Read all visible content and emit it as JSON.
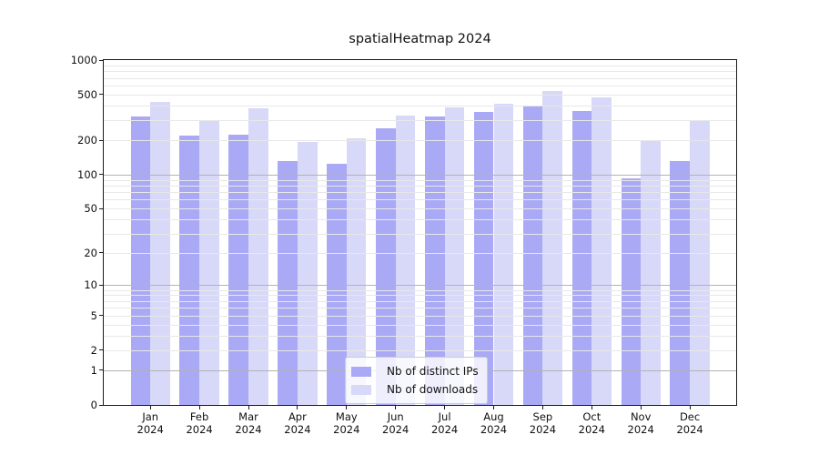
{
  "chart_data": {
    "type": "bar",
    "title": "spatialHeatmap 2024",
    "x": {
      "months": [
        "Jan",
        "Feb",
        "Mar",
        "Apr",
        "May",
        "Jun",
        "Jul",
        "Aug",
        "Sep",
        "Oct",
        "Nov",
        "Dec"
      ],
      "year": "2024"
    },
    "series": [
      {
        "name": "Nb of distinct IPs",
        "color": "#a9a9f5",
        "values": [
          320,
          219,
          222,
          131,
          124,
          254,
          320,
          352,
          400,
          361,
          92,
          131
        ]
      },
      {
        "name": "Nb of downloads",
        "color": "#d8d8f9",
        "values": [
          430,
          295,
          379,
          193,
          208,
          329,
          388,
          415,
          538,
          469,
          197,
          293
        ]
      }
    ],
    "y_axis": {
      "scale": "log10(value+1)",
      "ticks": [
        0,
        1,
        2,
        5,
        10,
        20,
        50,
        100,
        200,
        500,
        1000
      ],
      "lim": [
        0,
        1000
      ]
    },
    "grid": {
      "major_at": [
        1,
        10,
        100,
        1000
      ],
      "minor_at": [
        2,
        3,
        4,
        5,
        6,
        7,
        8,
        9,
        20,
        30,
        40,
        50,
        60,
        70,
        80,
        90,
        200,
        300,
        400,
        500,
        600,
        700,
        800,
        900
      ],
      "major_color": "#b3b3b3",
      "minor_color": "#e8e8e8"
    },
    "legend": {
      "position": "bottom-center"
    }
  }
}
